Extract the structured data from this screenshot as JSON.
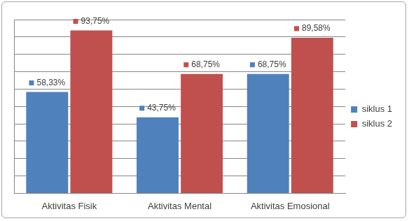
{
  "chart_data": {
    "type": "bar",
    "categories": [
      "Aktivitas Fisik",
      "Aktivitas Mental",
      "Aktivitas Emosional"
    ],
    "series": [
      {
        "name": "siklus 1",
        "color": "#4f81bd",
        "values": [
          58.33,
          43.75,
          68.75
        ],
        "value_labels": [
          "58,33%",
          "43,75%",
          "68,75%"
        ]
      },
      {
        "name": "siklus 2",
        "color": "#c0504d",
        "values": [
          93.75,
          68.75,
          89.58
        ],
        "value_labels": [
          "93,75%",
          "68,75%",
          "89,58%"
        ]
      }
    ],
    "ylim": [
      0,
      100
    ],
    "yticks": [
      0,
      10,
      20,
      30,
      40,
      50,
      60,
      70,
      80,
      90,
      100
    ],
    "grid": true,
    "legend": "right",
    "data_labels": true,
    "tick_labels": "x"
  }
}
